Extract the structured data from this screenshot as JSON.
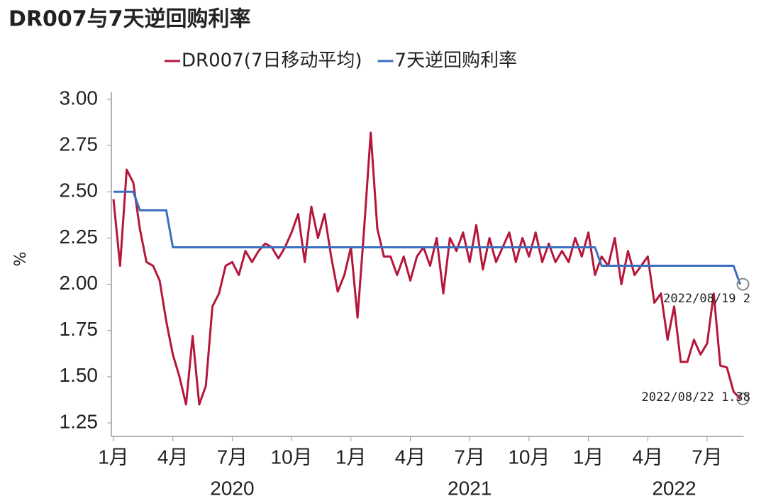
{
  "chart_data": {
    "type": "line",
    "title": "DR007与7天逆回购利率",
    "y_label": "%",
    "categories": [
      "1月",
      null,
      null,
      null,
      null,
      null,
      null,
      null,
      null,
      "4月",
      null,
      null,
      null,
      null,
      null,
      null,
      null,
      null,
      "7月",
      null,
      null,
      null,
      null,
      null,
      null,
      null,
      null,
      "10月",
      null,
      null,
      null,
      null,
      null,
      null,
      null,
      null,
      "1月",
      null,
      null,
      null,
      null,
      null,
      null,
      null,
      null,
      "4月",
      null,
      null,
      null,
      null,
      null,
      null,
      null,
      null,
      "7月",
      null,
      null,
      null,
      null,
      null,
      null,
      null,
      null,
      "10月",
      null,
      null,
      null,
      null,
      null,
      null,
      null,
      null,
      "1月",
      null,
      null,
      null,
      null,
      null,
      null,
      null,
      null,
      "4月",
      null,
      null,
      null,
      null,
      null,
      null,
      null,
      null,
      "7月",
      null,
      null,
      null,
      null,
      null
    ],
    "years": [
      null,
      null,
      null,
      null,
      null,
      null,
      null,
      null,
      null,
      null,
      null,
      null,
      null,
      null,
      null,
      null,
      null,
      null,
      "2020",
      null,
      null,
      null,
      null,
      null,
      null,
      null,
      null,
      null,
      null,
      null,
      null,
      null,
      null,
      null,
      null,
      null,
      null,
      null,
      null,
      null,
      null,
      null,
      null,
      null,
      null,
      null,
      null,
      null,
      null,
      null,
      null,
      null,
      null,
      null,
      "2021",
      null,
      null,
      null,
      null,
      null,
      null,
      null,
      null,
      null,
      null,
      null,
      null,
      null,
      null,
      null,
      null,
      null,
      null,
      null,
      null,
      null,
      null,
      null,
      null,
      null,
      null,
      null,
      null,
      null,
      null,
      "2022",
      null,
      null,
      null,
      null,
      null,
      null,
      null,
      null,
      null,
      null
    ],
    "series": [
      {
        "name": "DR007(7日移动平均)",
        "color": "#b5173a",
        "values": [
          2.46,
          2.1,
          2.62,
          2.55,
          2.3,
          2.12,
          2.1,
          2.02,
          1.8,
          1.62,
          1.5,
          1.35,
          1.72,
          1.35,
          1.45,
          1.88,
          1.95,
          2.1,
          2.12,
          2.05,
          2.18,
          2.12,
          2.18,
          2.22,
          2.2,
          2.14,
          2.2,
          2.28,
          2.38,
          2.12,
          2.42,
          2.25,
          2.38,
          2.15,
          1.96,
          2.05,
          2.2,
          1.82,
          2.3,
          2.82,
          2.3,
          2.15,
          2.15,
          2.05,
          2.15,
          2.02,
          2.15,
          2.2,
          2.1,
          2.25,
          1.95,
          2.25,
          2.18,
          2.28,
          2.12,
          2.32,
          2.08,
          2.25,
          2.12,
          2.2,
          2.28,
          2.12,
          2.25,
          2.15,
          2.28,
          2.12,
          2.22,
          2.12,
          2.18,
          2.12,
          2.25,
          2.15,
          2.28,
          2.05,
          2.15,
          2.1,
          2.25,
          2.0,
          2.18,
          2.05,
          2.1,
          2.15,
          1.9,
          1.95,
          1.7,
          1.88,
          1.58,
          1.58,
          1.7,
          1.62,
          1.68,
          1.95,
          1.56,
          1.55,
          1.42,
          1.38
        ]
      },
      {
        "name": "7天逆回购利率",
        "color": "#3a6fbf",
        "values": [
          2.5,
          2.5,
          2.5,
          2.5,
          2.4,
          2.4,
          2.4,
          2.4,
          2.4,
          2.2,
          2.2,
          2.2,
          2.2,
          2.2,
          2.2,
          2.2,
          2.2,
          2.2,
          2.2,
          2.2,
          2.2,
          2.2,
          2.2,
          2.2,
          2.2,
          2.2,
          2.2,
          2.2,
          2.2,
          2.2,
          2.2,
          2.2,
          2.2,
          2.2,
          2.2,
          2.2,
          2.2,
          2.2,
          2.2,
          2.2,
          2.2,
          2.2,
          2.2,
          2.2,
          2.2,
          2.2,
          2.2,
          2.2,
          2.2,
          2.2,
          2.2,
          2.2,
          2.2,
          2.2,
          2.2,
          2.2,
          2.2,
          2.2,
          2.2,
          2.2,
          2.2,
          2.2,
          2.2,
          2.2,
          2.2,
          2.2,
          2.2,
          2.2,
          2.2,
          2.2,
          2.2,
          2.2,
          2.2,
          2.2,
          2.1,
          2.1,
          2.1,
          2.1,
          2.1,
          2.1,
          2.1,
          2.1,
          2.1,
          2.1,
          2.1,
          2.1,
          2.1,
          2.1,
          2.1,
          2.1,
          2.1,
          2.1,
          2.1,
          2.1,
          2.1,
          2.0
        ]
      }
    ],
    "annotations": [
      "2022/08/19 2",
      "2022/08/22 1.38"
    ],
    "ylim": [
      1.25,
      3.0
    ],
    "yticks": [
      {
        "value": 1.25,
        "label": "1.25"
      },
      {
        "value": 1.5,
        "label": "1.50"
      },
      {
        "value": 1.75,
        "label": "1.75"
      },
      {
        "value": 2.0,
        "label": "2.00"
      },
      {
        "value": 2.25,
        "label": "2.25"
      },
      {
        "value": 2.5,
        "label": "2.50"
      },
      {
        "value": 2.75,
        "label": "2.75"
      },
      {
        "value": 3.0,
        "label": "3.00"
      }
    ],
    "grid": false
  }
}
